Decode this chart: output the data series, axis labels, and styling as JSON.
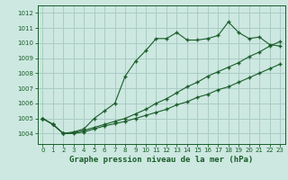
{
  "title": "Graphe pression niveau de la mer (hPa)",
  "xlim": [
    -0.5,
    23.5
  ],
  "ylim": [
    1003.3,
    1012.5
  ],
  "yticks": [
    1004,
    1005,
    1006,
    1007,
    1008,
    1009,
    1010,
    1011,
    1012
  ],
  "xticks": [
    0,
    1,
    2,
    3,
    4,
    5,
    6,
    7,
    8,
    9,
    10,
    11,
    12,
    13,
    14,
    15,
    16,
    17,
    18,
    19,
    20,
    21,
    22,
    23
  ],
  "bg_color": "#cce8e0",
  "grid_color": "#aaccC4",
  "line_color": "#1a5c2a",
  "line1": [
    1005.0,
    1004.6,
    1004.0,
    1004.1,
    1004.3,
    1005.0,
    1005.5,
    1006.0,
    1007.8,
    1008.8,
    1009.5,
    1010.3,
    1010.3,
    1010.7,
    1010.2,
    1010.2,
    1010.3,
    1010.5,
    1011.4,
    1010.7,
    1010.3,
    1010.4,
    1009.9,
    1009.8
  ],
  "line2": [
    1005.0,
    1004.6,
    1004.0,
    1004.05,
    1004.2,
    1004.4,
    1004.6,
    1004.8,
    1005.0,
    1005.3,
    1005.6,
    1006.0,
    1006.3,
    1006.7,
    1007.1,
    1007.4,
    1007.8,
    1008.1,
    1008.4,
    1008.7,
    1009.1,
    1009.4,
    1009.8,
    1010.1
  ],
  "line3": [
    1005.0,
    1004.6,
    1004.0,
    1004.0,
    1004.1,
    1004.3,
    1004.5,
    1004.65,
    1004.8,
    1005.0,
    1005.2,
    1005.4,
    1005.6,
    1005.9,
    1006.1,
    1006.4,
    1006.6,
    1006.9,
    1007.1,
    1007.4,
    1007.7,
    1008.0,
    1008.3,
    1008.6
  ]
}
